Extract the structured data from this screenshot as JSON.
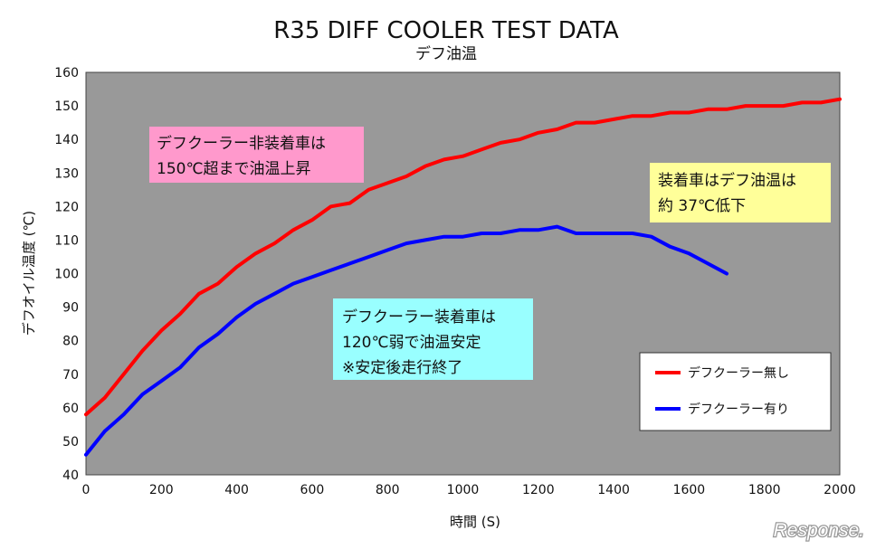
{
  "chart_data": {
    "type": "line",
    "title": "R35 DIFF COOLER TEST DATA",
    "subtitle": "デフ油温",
    "xlabel": "時間 (S)",
    "ylabel": "デフオイル温度 (℃)",
    "xlim": [
      0,
      2000
    ],
    "ylim": [
      40,
      160
    ],
    "x_ticks": [
      0,
      200,
      400,
      600,
      800,
      1000,
      1200,
      1400,
      1600,
      1800,
      2000
    ],
    "y_ticks": [
      40,
      50,
      60,
      70,
      80,
      90,
      100,
      110,
      120,
      130,
      140,
      150,
      160
    ],
    "series": [
      {
        "name": "デフクーラー無し",
        "color": "#ff0000",
        "x": [
          0,
          50,
          100,
          150,
          200,
          250,
          300,
          350,
          400,
          450,
          500,
          550,
          600,
          650,
          700,
          750,
          800,
          850,
          900,
          950,
          1000,
          1050,
          1100,
          1150,
          1200,
          1250,
          1300,
          1350,
          1400,
          1450,
          1500,
          1550,
          1600,
          1650,
          1700,
          1750,
          1800,
          1850,
          1900,
          1950,
          2000
        ],
        "values": [
          58,
          63,
          70,
          77,
          83,
          88,
          94,
          97,
          102,
          106,
          109,
          113,
          116,
          120,
          121,
          125,
          127,
          129,
          132,
          134,
          135,
          137,
          139,
          140,
          142,
          143,
          145,
          145,
          146,
          147,
          147,
          148,
          148,
          149,
          149,
          150,
          150,
          150,
          151,
          151,
          152
        ]
      },
      {
        "name": "デフクーラー有り",
        "color": "#0000ff",
        "x": [
          0,
          50,
          100,
          150,
          200,
          250,
          300,
          350,
          400,
          450,
          500,
          550,
          600,
          650,
          700,
          750,
          800,
          850,
          900,
          950,
          1000,
          1050,
          1100,
          1150,
          1200,
          1250,
          1300,
          1350,
          1400,
          1450,
          1500,
          1550,
          1600,
          1650,
          1700
        ],
        "values": [
          46,
          53,
          58,
          64,
          68,
          72,
          78,
          82,
          87,
          91,
          94,
          97,
          99,
          101,
          103,
          105,
          107,
          109,
          110,
          111,
          111,
          112,
          112,
          113,
          113,
          114,
          112,
          112,
          112,
          112,
          111,
          108,
          106,
          103,
          100
        ]
      }
    ],
    "annotations": [
      {
        "lines": [
          "デフクーラー非装着車は",
          "150℃超まで油温上昇"
        ],
        "fill": "#ff99cc"
      },
      {
        "lines": [
          "デフクーラー装着車は",
          "120℃弱で油温安定",
          "※安定後走行終了"
        ],
        "fill": "#99ffff"
      },
      {
        "lines": [
          "装着車はデフ油温は",
          "約 37℃低下"
        ],
        "fill": "#ffff99"
      }
    ],
    "legend": {
      "position": "lower-right",
      "entries": [
        "デフクーラー無し",
        "デフクーラー有り"
      ]
    },
    "grid": false,
    "plot_background": "#999999"
  },
  "watermark": "Response."
}
